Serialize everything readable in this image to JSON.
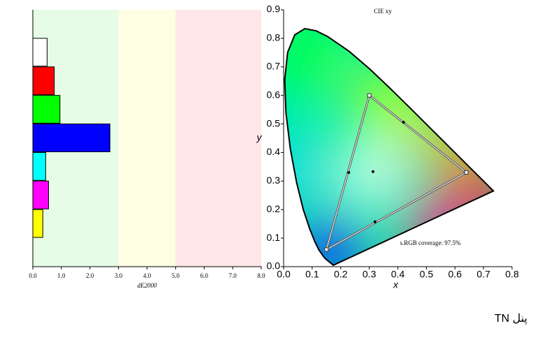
{
  "chart_data": [
    {
      "type": "bar",
      "orientation": "horizontal",
      "categories": [
        null,
        null,
        null,
        null,
        null,
        null,
        null
      ],
      "values": [
        0.5,
        0.75,
        0.95,
        2.7,
        0.45,
        0.55,
        0.35
      ],
      "colors": [
        "#ffffff",
        "#ff0000",
        "#00ff00",
        "#0000ff",
        "#00ffff",
        "#ff00ff",
        "#ffff00"
      ],
      "xlabel": "dE2000",
      "xlim": [
        0,
        8
      ],
      "xticks": [
        {
          "value": 0,
          "label": "0.0"
        },
        {
          "value": 1,
          "label": "1.0"
        },
        {
          "value": 2,
          "label": "2.0"
        },
        {
          "value": 3,
          "label": "3.0"
        },
        {
          "value": 4,
          "label": "4.0"
        },
        {
          "value": 5,
          "label": "5.0"
        },
        {
          "value": 6,
          "label": "6.0"
        },
        {
          "value": 7,
          "label": "7.0"
        },
        {
          "value": 8,
          "label": "8.0"
        }
      ],
      "bands": [
        {
          "from": 0,
          "to": 3,
          "color": "#e6fce6"
        },
        {
          "from": 3,
          "to": 5,
          "color": "#fdfee2"
        },
        {
          "from": 5,
          "to": 8,
          "color": "#ffe6e8"
        }
      ]
    },
    {
      "type": "cie",
      "title": "CIE xy",
      "xlabel": "x",
      "ylabel": "y",
      "xlim": [
        0,
        0.8
      ],
      "ylim": [
        0,
        0.9
      ],
      "xticks": [
        {
          "value": 0,
          "label": "0.0"
        },
        0.1,
        0.2,
        0.3,
        0.4,
        0.5,
        0.6,
        0.7,
        0.8
      ],
      "yticks": [
        {
          "value": 0,
          "label": "0.0"
        },
        0.1,
        0.2,
        0.3,
        0.4,
        0.5,
        0.6,
        0.7,
        0.8,
        0.9
      ],
      "locus": {
        "x": [
          0.1741,
          0.144,
          0.1241,
          0.1096,
          0.0913,
          0.0687,
          0.0454,
          0.0235,
          0.0082,
          0.0039,
          0.0139,
          0.0389,
          0.0743,
          0.1142,
          0.1547,
          0.2296,
          0.3016,
          0.3731,
          0.4441,
          0.5125,
          0.5752,
          0.627,
          0.6915,
          0.7347
        ],
        "y": [
          0.005,
          0.0297,
          0.0578,
          0.0868,
          0.1327,
          0.2007,
          0.295,
          0.4127,
          0.5384,
          0.6548,
          0.7502,
          0.812,
          0.8338,
          0.8262,
          0.8059,
          0.7543,
          0.6923,
          0.6245,
          0.5547,
          0.4866,
          0.4242,
          0.3725,
          0.3083,
          0.2653
        ]
      },
      "gamut": {
        "x": [
          0.64,
          0.3,
          0.15
        ],
        "y": [
          0.33,
          0.6,
          0.06
        ]
      },
      "gamut_midpoints": {
        "x": [
          0.42,
          0.228,
          0.32
        ],
        "y": [
          0.506,
          0.33,
          0.157
        ]
      },
      "white_point": {
        "x": 0.313,
        "y": 0.333
      },
      "annotation": "s.RGB coverage: 97.5%"
    }
  ],
  "caption": "پنل TN"
}
